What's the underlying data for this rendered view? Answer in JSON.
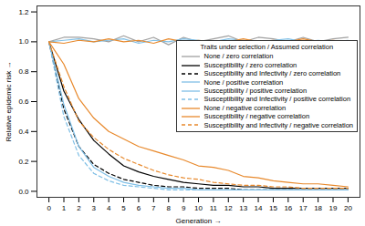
{
  "chart_data": {
    "type": "line",
    "x_label": "Generation",
    "y_label": "Relative epidemic risk",
    "legend_title": "Traits under selection / Assumed correlation",
    "legend": "right",
    "grid": false,
    "x": [
      0,
      1,
      2,
      3,
      4,
      5,
      6,
      7,
      8,
      9,
      10,
      11,
      12,
      13,
      14,
      15,
      16,
      17,
      18,
      19,
      20
    ],
    "xlim": [
      -0.8,
      20.8
    ],
    "xticks": [
      0,
      1,
      2,
      3,
      4,
      5,
      6,
      7,
      8,
      9,
      10,
      11,
      12,
      13,
      14,
      15,
      16,
      17,
      18,
      19,
      20
    ],
    "ylim": [
      -0.04,
      1.24
    ],
    "yticks": [
      {
        "value": 0,
        "label": "0.0"
      },
      {
        "value": 0.2,
        "label": "0.2"
      },
      {
        "value": 0.4,
        "label": "0.4"
      },
      {
        "value": 0.6,
        "label": "0.6"
      },
      {
        "value": 0.8,
        "label": "0.8"
      },
      {
        "value": 1,
        "label": "1.0"
      },
      {
        "value": 1.2,
        "label": "1.2"
      }
    ],
    "series": [
      {
        "name": "None / zero correlation",
        "color": "#a0a0a0",
        "line_style": "solid",
        "values": [
          1.0,
          1.03,
          1.03,
          1.02,
          1.0,
          1.04,
          1.0,
          1.03,
          0.98,
          1.03,
          1.0,
          1.02,
          1.04,
          1.0,
          1.03,
          1.02,
          1.0,
          1.03,
          1.0,
          1.02,
          1.03
        ]
      },
      {
        "name": "Susceptibility / zero correlation",
        "color": "#000000",
        "line_style": "solid",
        "values": [
          1.0,
          0.67,
          0.48,
          0.34,
          0.25,
          0.17,
          0.13,
          0.1,
          0.08,
          0.06,
          0.05,
          0.04,
          0.04,
          0.03,
          0.03,
          0.02,
          0.02,
          0.02,
          0.02,
          0.02,
          0.02
        ]
      },
      {
        "name": "Susceptibility and Infectivity / zero correlation",
        "color": "#000000",
        "line_style": "dashed",
        "values": [
          1.0,
          0.55,
          0.3,
          0.18,
          0.12,
          0.08,
          0.06,
          0.04,
          0.03,
          0.03,
          0.02,
          0.02,
          0.02,
          0.01,
          0.01,
          0.01,
          0.01,
          0.01,
          0.01,
          0.01,
          0.01
        ]
      },
      {
        "name": "None / positive correlation",
        "color": "#7fbfe6",
        "line_style": "solid",
        "values": [
          1.0,
          1.01,
          1.02,
          1.0,
          1.01,
          1.02,
          0.99,
          1.01,
          1.0,
          1.02,
          1.01,
          1.0,
          1.02,
          1.01,
          1.0,
          1.01,
          1.02,
          1.0,
          1.01,
          1.0,
          1.01
        ]
      },
      {
        "name": "Susceptibility / positive correlation",
        "color": "#7fbfe6",
        "line_style": "solid",
        "values": [
          1.0,
          0.58,
          0.3,
          0.16,
          0.1,
          0.06,
          0.04,
          0.03,
          0.02,
          0.02,
          0.01,
          0.01,
          0.01,
          0.01,
          0.01,
          0.01,
          0.01,
          0.01,
          0.01,
          0.01,
          0.01
        ]
      },
      {
        "name": "Susceptibility and Infectivity / positive correlation",
        "color": "#7fbfe6",
        "line_style": "dashed",
        "values": [
          1.0,
          0.5,
          0.24,
          0.12,
          0.07,
          0.04,
          0.03,
          0.02,
          0.01,
          0.01,
          0.01,
          0.01,
          0.01,
          0.01,
          0.01,
          0.01,
          0.01,
          0.01,
          0.01,
          0.01,
          0.01
        ]
      },
      {
        "name": "None / negative correlation",
        "color": "#e8892c",
        "line_style": "solid",
        "values": [
          1.0,
          0.99,
          1.01,
          1.0,
          1.02,
          1.0,
          1.01,
          0.99,
          1.02,
          1.0,
          1.01,
          1.0,
          1.0,
          1.02,
          1.0,
          1.01,
          1.0,
          1.02,
          1.0,
          1.01,
          1.0
        ]
      },
      {
        "name": "Susceptibility / negative correlation",
        "color": "#e8892c",
        "line_style": "solid",
        "values": [
          1.0,
          0.85,
          0.62,
          0.49,
          0.4,
          0.35,
          0.3,
          0.27,
          0.24,
          0.21,
          0.17,
          0.16,
          0.14,
          0.1,
          0.09,
          0.07,
          0.06,
          0.05,
          0.05,
          0.04,
          0.03
        ]
      },
      {
        "name": "Susceptibility and Infectivity / negative correlation",
        "color": "#e8892c",
        "line_style": "dashed",
        "values": [
          1.0,
          0.7,
          0.47,
          0.36,
          0.28,
          0.22,
          0.18,
          0.14,
          0.11,
          0.09,
          0.08,
          0.06,
          0.05,
          0.04,
          0.04,
          0.03,
          0.03,
          0.02,
          0.02,
          0.02,
          0.02
        ]
      }
    ]
  }
}
